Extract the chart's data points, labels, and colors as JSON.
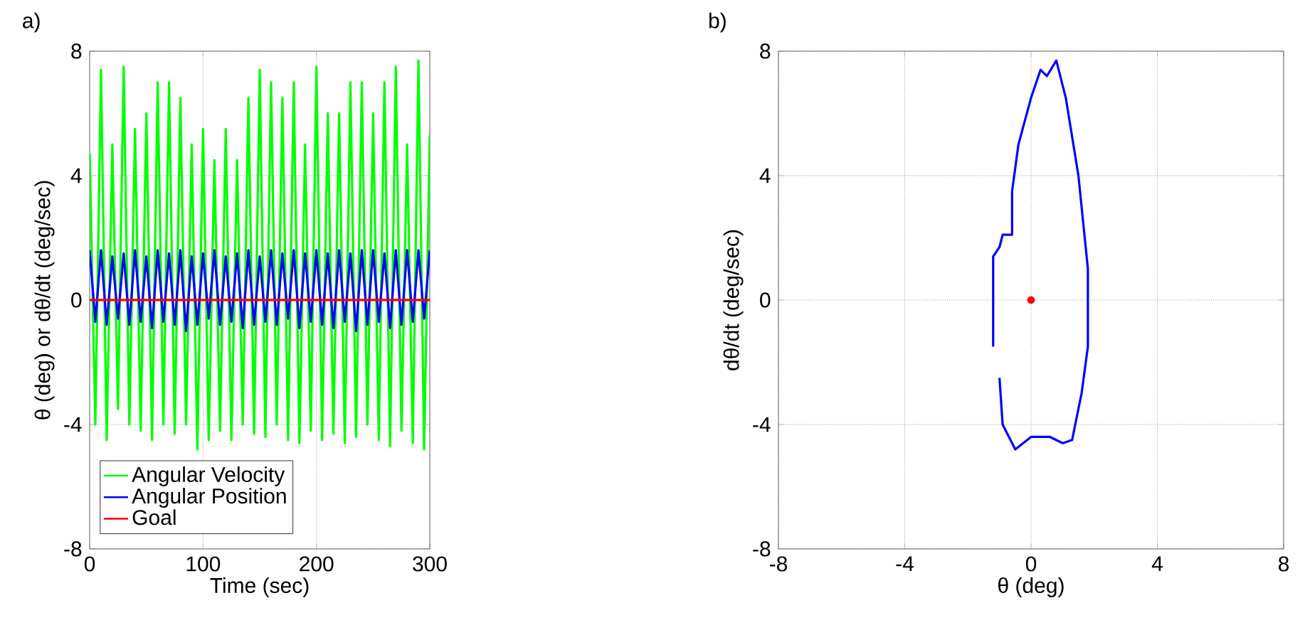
{
  "chart_data": [
    {
      "type": "line",
      "title": "a)",
      "xlabel": "Time (sec)",
      "ylabel": "θ (deg) or dθ/dt (deg/sec)",
      "xlim": [
        0,
        300
      ],
      "ylim": [
        -8,
        8
      ],
      "xticks": [
        0,
        100,
        200,
        300
      ],
      "yticks": [
        -8,
        -4,
        0,
        4,
        8
      ],
      "grid": true,
      "legend": "bottom left",
      "series": [
        {
          "name": "Angular Velocity",
          "color": "#00ff00",
          "x": [
            0,
            5,
            10,
            15,
            20,
            25,
            30,
            35,
            40,
            45,
            50,
            55,
            60,
            65,
            70,
            75,
            80,
            85,
            90,
            95,
            100,
            105,
            110,
            115,
            120,
            125,
            130,
            135,
            140,
            145,
            150,
            155,
            160,
            165,
            170,
            175,
            180,
            185,
            190,
            195,
            200,
            205,
            210,
            215,
            220,
            225,
            230,
            235,
            240,
            245,
            250,
            255,
            260,
            265,
            270,
            275,
            280,
            285,
            290,
            295,
            300
          ],
          "values": [
            4.7,
            -4,
            7.4,
            -4.5,
            5,
            -3.5,
            7.5,
            -4,
            5.5,
            -4.2,
            6,
            -4.5,
            7,
            -4,
            7,
            -4.3,
            6.5,
            -4,
            5,
            -4.8,
            5.5,
            -4.5,
            4.5,
            -4.2,
            5.5,
            -4.5,
            4.5,
            -4,
            6.5,
            -4.3,
            7.4,
            -4.4,
            7,
            -4,
            6.5,
            -4.5,
            7,
            -4.6,
            5,
            -4.2,
            7.5,
            -4.5,
            6,
            -4.3,
            6,
            -4.6,
            7,
            -4.4,
            7,
            -4,
            6,
            -4.5,
            7,
            -4.7,
            7.5,
            -4.2,
            5,
            -4.6,
            7.7,
            -4.8,
            5.3
          ]
        },
        {
          "name": "Angular Position",
          "color": "#0000ff",
          "x": [
            0,
            5,
            10,
            15,
            20,
            25,
            30,
            35,
            40,
            45,
            50,
            55,
            60,
            65,
            70,
            75,
            80,
            85,
            90,
            95,
            100,
            105,
            110,
            115,
            120,
            125,
            130,
            135,
            140,
            145,
            150,
            155,
            160,
            165,
            170,
            175,
            180,
            185,
            190,
            195,
            200,
            205,
            210,
            215,
            220,
            225,
            230,
            235,
            240,
            245,
            250,
            255,
            260,
            265,
            270,
            275,
            280,
            285,
            290,
            295,
            300
          ],
          "values": [
            1.6,
            -0.7,
            1.6,
            -0.8,
            1.4,
            -0.6,
            1.5,
            -0.8,
            1.6,
            -0.7,
            1.4,
            -0.9,
            1.6,
            -0.7,
            1.5,
            -0.8,
            1.6,
            -1,
            1.4,
            -0.8,
            1.5,
            -0.6,
            1.6,
            -0.8,
            1.4,
            -0.7,
            1.5,
            -0.9,
            1.6,
            -0.8,
            1.4,
            -0.7,
            1.6,
            -0.8,
            1.5,
            -0.6,
            1.6,
            -0.9,
            1.5,
            -0.7,
            1.6,
            -0.8,
            1.5,
            -0.9,
            1.6,
            -0.7,
            1.5,
            -1,
            1.6,
            -0.8,
            1.6,
            -0.7,
            1.5,
            -0.9,
            1.6,
            -0.8,
            1.6,
            -0.7,
            1.6,
            -0.6,
            1.6
          ]
        },
        {
          "name": "Goal",
          "color": "#ff0000",
          "x": [
            0,
            300
          ],
          "values": [
            0,
            0
          ]
        }
      ]
    },
    {
      "type": "line",
      "title": "b)",
      "xlabel": "θ (deg)",
      "ylabel": "dθ/dt (deg/sec)",
      "xlim": [
        -8,
        8
      ],
      "ylim": [
        -8,
        8
      ],
      "xticks": [
        -8,
        -4,
        0,
        4,
        8
      ],
      "yticks": [
        -8,
        -4,
        0,
        4,
        8
      ],
      "grid": true,
      "series": [
        {
          "color": "#0000ff",
          "x": [
            -1.2,
            -1.2,
            -1.0,
            -0.9,
            -0.6,
            -0.6,
            -0.4,
            0,
            0.3,
            0.5,
            0.8,
            1.1,
            1.5,
            1.8,
            1.8,
            1.6,
            1.3,
            1.0,
            0.6,
            0,
            -0.5,
            -0.9,
            -1.0
          ],
          "values": [
            -1.5,
            1.4,
            1.7,
            2.1,
            2.1,
            3.5,
            5,
            6.5,
            7.4,
            7.2,
            7.7,
            6.5,
            4,
            1,
            -1.5,
            -3,
            -4.5,
            -4.6,
            -4.4,
            -4.4,
            -4.8,
            -4.0,
            -2.5
          ]
        },
        {
          "type": "scatter",
          "color": "#ff0000",
          "x": [
            0
          ],
          "values": [
            0
          ]
        }
      ]
    }
  ]
}
